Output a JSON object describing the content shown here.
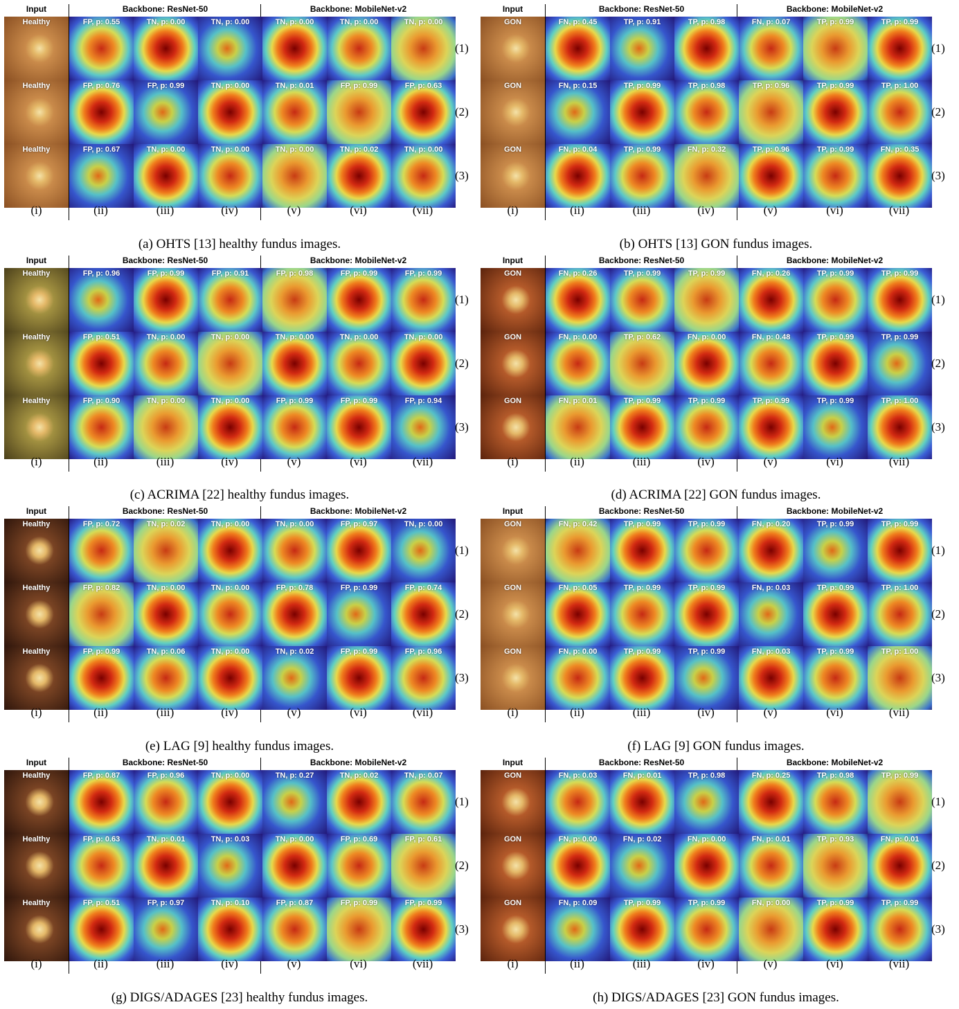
{
  "header": {
    "input": "Input",
    "backbone_a": "Backbone: ResNet-50",
    "backbone_b": "Backbone: MobileNet-v2"
  },
  "column_labels": [
    "(i)",
    "(ii)",
    "(iii)",
    "(iv)",
    "(v)",
    "(vi)",
    "(vii)"
  ],
  "row_labels": [
    "(1)",
    "(2)",
    "(3)"
  ],
  "panels": [
    {
      "caption": "(a) OHTS [13] healthy fundus images.",
      "input_label": "Healthy",
      "fundus": "light",
      "rows": [
        [
          "FP, p: 0.55",
          "TN, p: 0.00",
          "TN, p: 0.00",
          "TN, p: 0.00",
          "TN, p: 0.00",
          "TN, p: 0.00"
        ],
        [
          "FP, p: 0.76",
          "FP, p: 0.99",
          "TN, p: 0.00",
          "TN, p: 0.01",
          "FP, p: 0.99",
          "FP, p: 0.63"
        ],
        [
          "FP, p: 0.67",
          "TN, p: 0.00",
          "TN, p: 0.00",
          "TN, p: 0.00",
          "TN, p: 0.02",
          "TN, p: 0.00"
        ]
      ]
    },
    {
      "caption": "(b) OHTS [13] GON fundus images.",
      "input_label": "GON",
      "fundus": "light",
      "rows": [
        [
          "FN, p: 0.45",
          "TP, p: 0.91",
          "TP, p: 0.98",
          "FN, p: 0.07",
          "TP, p: 0.99",
          "TP, p: 0.99"
        ],
        [
          "FN, p: 0.15",
          "TP, p: 0.99",
          "TP, p: 0.98",
          "TP, p: 0.96",
          "TP, p: 0.99",
          "TP, p: 1.00"
        ],
        [
          "FN, p: 0.04",
          "TP, p: 0.99",
          "FN, p: 0.32",
          "TP, p: 0.96",
          "TP, p: 0.99",
          "FN, p: 0.35"
        ]
      ]
    },
    {
      "caption": "(c) ACRIMA [22] healthy fundus images.",
      "input_label": "Healthy",
      "fundus": "olive",
      "rows": [
        [
          "FP, p: 0.96",
          "FP, p: 0.99",
          "FP, p: 0.91",
          "FP, p: 0.98",
          "FP, p: 0.99",
          "FP, p: 0.99"
        ],
        [
          "FP, p: 0.51",
          "TN, p: 0.00",
          "TN, p: 0.00",
          "TN, p: 0.00",
          "TN, p: 0.00",
          "TN, p: 0.00"
        ],
        [
          "FP, p: 0.90",
          "TN, p: 0.00",
          "TN, p: 0.00",
          "FP, p: 0.99",
          "FP, p: 0.99",
          "FP, p: 0.94"
        ]
      ]
    },
    {
      "caption": "(d) ACRIMA [22] GON fundus images.",
      "input_label": "GON",
      "fundus": "red",
      "rows": [
        [
          "FN, p: 0.26",
          "TP, p: 0.99",
          "TP, p: 0.99",
          "FN, p: 0.26",
          "TP, p: 0.99",
          "TP, p: 0.99"
        ],
        [
          "FN, p: 0.00",
          "TP, p: 0.62",
          "FN, p: 0.00",
          "FN, p: 0.48",
          "TP, p: 0.99",
          "TP, p: 0.99"
        ],
        [
          "FN, p: 0.01",
          "TP, p: 0.99",
          "TP, p: 0.99",
          "TP, p: 0.99",
          "TP, p: 0.99",
          "TP, p: 1.00"
        ]
      ]
    },
    {
      "caption": "(e) LAG [9] healthy fundus images.",
      "input_label": "Healthy",
      "fundus": "dark",
      "rows": [
        [
          "FP, p: 0.72",
          "TN, p: 0.02",
          "TN, p: 0.00",
          "TN, p: 0.00",
          "FP, p: 0.97",
          "TN, p: 0.00"
        ],
        [
          "FP, p: 0.82",
          "TN, p: 0.00",
          "TN, p: 0.00",
          "FP, p: 0.78",
          "FP, p: 0.99",
          "FP, p: 0.74"
        ],
        [
          "FP, p: 0.99",
          "TN, p: 0.06",
          "TN, p: 0.00",
          "TN, p: 0.02",
          "FP, p: 0.99",
          "FP, p: 0.96"
        ]
      ]
    },
    {
      "caption": "(f) LAG [9] GON fundus images.",
      "input_label": "GON",
      "fundus": "light",
      "rows": [
        [
          "FN, p: 0.42",
          "TP, p: 0.99",
          "TP, p: 0.99",
          "FN, p: 0.20",
          "TP, p: 0.99",
          "TP, p: 0.99"
        ],
        [
          "FN, p: 0.05",
          "TP, p: 0.99",
          "TP, p: 0.99",
          "FN, p: 0.03",
          "TP, p: 0.99",
          "TP, p: 1.00"
        ],
        [
          "FN, p: 0.00",
          "TP, p: 0.99",
          "TP, p: 0.99",
          "FN, p: 0.03",
          "TP, p: 0.99",
          "TP, p: 1.00"
        ]
      ]
    },
    {
      "caption": "(g) DIGS/ADAGES [23] healthy fundus images.",
      "input_label": "Healthy",
      "fundus": "dark",
      "rows": [
        [
          "FP, p: 0.87",
          "FP, p: 0.96",
          "TN, p: 0.00",
          "TN, p: 0.27",
          "TN, p: 0.02",
          "TN, p: 0.07"
        ],
        [
          "FP, p: 0.63",
          "TN, p: 0.01",
          "TN, p: 0.03",
          "TN, p: 0.00",
          "FP, p: 0.69",
          "FP, p: 0.61"
        ],
        [
          "FP, p: 0.51",
          "FP, p: 0.97",
          "TN, p: 0.10",
          "FP, p: 0.87",
          "FP, p: 0.99",
          "FP, p: 0.99"
        ]
      ]
    },
    {
      "caption": "(h) DIGS/ADAGES [23] GON fundus images.",
      "input_label": "GON",
      "fundus": "red",
      "rows": [
        [
          "FN, p: 0.03",
          "FN, p: 0.01",
          "TP, p: 0.98",
          "FN, p: 0.25",
          "TP, p: 0.98",
          "TP, p: 0.99"
        ],
        [
          "FN, p: 0.00",
          "FN, p: 0.02",
          "FN, p: 0.00",
          "FN, p: 0.01",
          "TP, p: 0.93",
          "FN, p: 0.01"
        ],
        [
          "FN, p: 0.09",
          "TP, p: 0.99",
          "TP, p: 0.99",
          "FN, p: 0.00",
          "TP, p: 0.99",
          "TP, p: 0.99"
        ]
      ]
    }
  ]
}
